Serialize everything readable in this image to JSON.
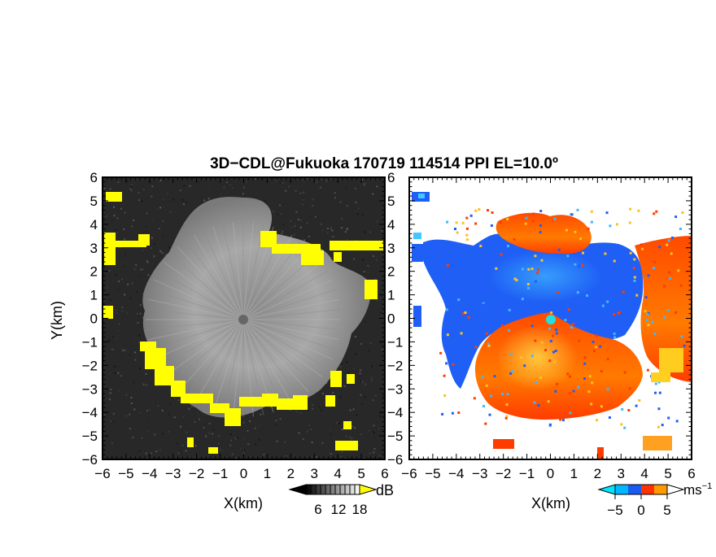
{
  "figure": {
    "title": "3D−CDL@Fukuoka 170719 114514 PPI EL=10.0º"
  },
  "chart_data": [
    {
      "type": "heatmap",
      "name": "reflectivity-ppi",
      "xlabel": "X(km)",
      "ylabel": "Y(km)",
      "xlim": [
        -6,
        6
      ],
      "ylim": [
        -6,
        6
      ],
      "xticks": [
        "−6",
        "−5",
        "−4",
        "−3",
        "−2",
        "−1",
        "0",
        "1",
        "2",
        "3",
        "4",
        "5",
        "6"
      ],
      "yticks": [
        "6",
        "5",
        "4",
        "3",
        "2",
        "1",
        "0",
        "−1",
        "−2",
        "−3",
        "−4",
        "−5",
        "−6"
      ],
      "colorbar": {
        "unit": "dB",
        "ticks": [
          "6",
          "12",
          "18"
        ],
        "colors": [
          "#000000",
          "#ffffff"
        ],
        "overflow_color": "#ffff00"
      }
    },
    {
      "type": "heatmap",
      "name": "doppler-velocity-ppi",
      "xlabel": "X(km)",
      "xlim": [
        -6,
        6
      ],
      "ylim": [
        -6,
        6
      ],
      "xticks": [
        "−6",
        "−5",
        "−4",
        "−3",
        "−2",
        "−1",
        "0",
        "1",
        "2",
        "3",
        "4",
        "5",
        "6"
      ],
      "yticks": [
        "6",
        "5",
        "4",
        "3",
        "2",
        "1",
        "0",
        "−1",
        "−2",
        "−3",
        "−4",
        "−5",
        "−6"
      ],
      "colorbar": {
        "unit": "ms",
        "unit_exp": "−1",
        "ticks": [
          "−5",
          "0",
          "5"
        ],
        "colors": [
          "#00e5ff",
          "#1a5cf0",
          "#ff3300",
          "#ffcc00"
        ]
      }
    }
  ]
}
